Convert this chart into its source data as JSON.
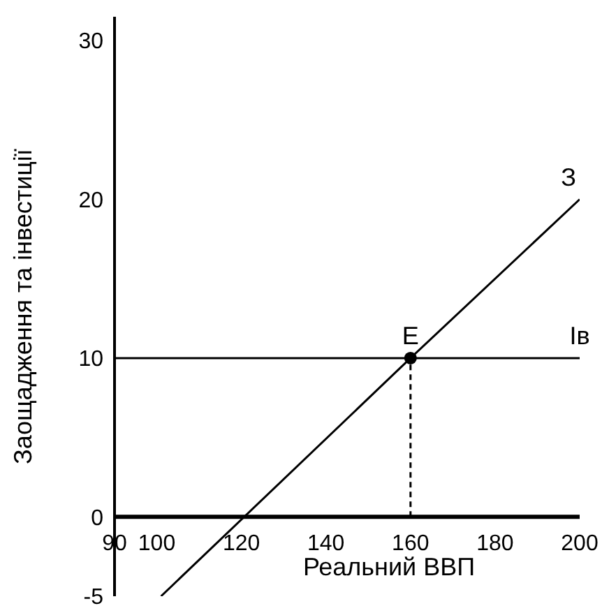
{
  "chart_data": {
    "type": "line",
    "xlabel": "Реальний ВВП",
    "ylabel": "Заощадження та інвестиції",
    "xlim": [
      90,
      200
    ],
    "xticks": [
      90,
      100,
      120,
      140,
      160,
      180,
      200
    ],
    "ylim": [
      -5,
      31.5
    ],
    "yticks": [
      -5,
      0,
      10,
      20,
      30
    ],
    "marker": "none",
    "series": [
      {
        "name": "З",
        "color": "#000000",
        "x": [
          101,
          160,
          200
        ],
        "values": [
          -5,
          10,
          20
        ]
      },
      {
        "name": "Iв",
        "color": "#000000",
        "x": [
          90,
          200
        ],
        "values": [
          10,
          10
        ]
      },
      {
        "color": "#000000",
        "x": [
          160,
          160
        ],
        "values": [
          0,
          10
        ],
        "line_style": "dashed"
      },
      {
        "type": "scatter",
        "name": "E",
        "color": "#000000",
        "x": [
          160
        ],
        "values": [
          10
        ],
        "marker": "circle"
      }
    ]
  }
}
